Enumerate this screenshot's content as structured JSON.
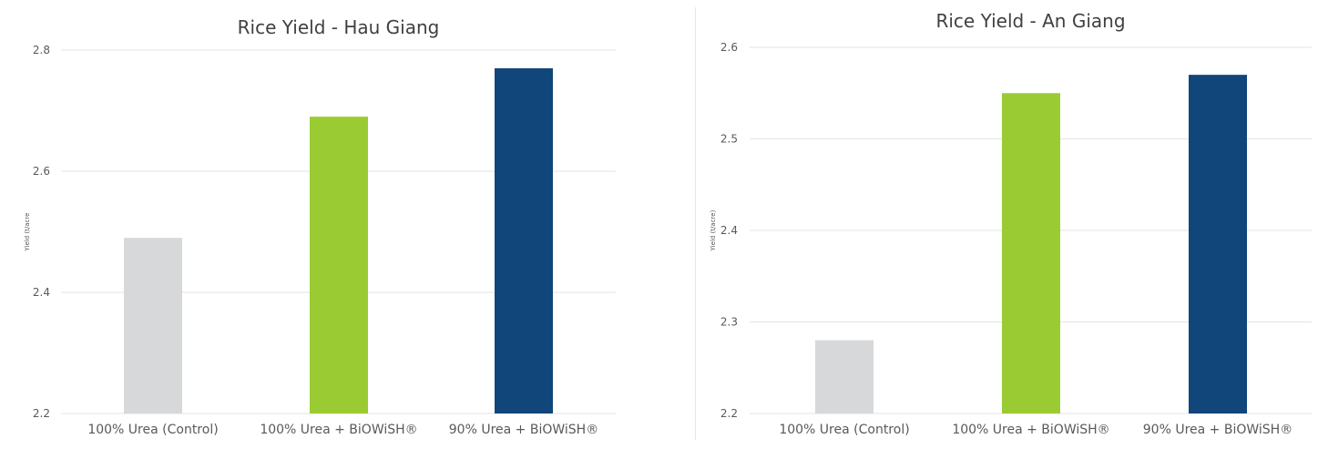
{
  "colors": {
    "control": "#d7d8da",
    "urea_100_biowish": "#9bcb33",
    "urea_90_biowish": "#10467a",
    "gridline": "#e3e3e3",
    "text": "#595959",
    "title": "#404040"
  },
  "chart_data": [
    {
      "type": "bar",
      "title": "Rice Yield - Hau Giang",
      "xlabel": "",
      "ylabel": "Yield (t/acre",
      "categories": [
        "100% Urea (Control)",
        "100% Urea + BiOWiSH®",
        "90% Urea + BiOWiSH®"
      ],
      "values": [
        2.49,
        2.69,
        2.77
      ],
      "bar_colors": [
        "#d7d8da",
        "#9bcb33",
        "#10467a"
      ],
      "ylim": [
        2.2,
        2.8
      ],
      "yticks": [
        2.2,
        2.4,
        2.6,
        2.8
      ],
      "ytick_labels": [
        "2.2",
        "2.4",
        "2.6",
        "2.8"
      ],
      "grid": true,
      "legend": false
    },
    {
      "type": "bar",
      "title": "Rice Yield - An Giang",
      "xlabel": "",
      "ylabel": "Yield (t/acre)",
      "categories": [
        "100% Urea (Control)",
        "100% Urea + BiOWiSH®",
        "90% Urea + BiOWiSH®"
      ],
      "values": [
        2.28,
        2.55,
        2.57
      ],
      "bar_colors": [
        "#d7d8da",
        "#9bcb33",
        "#10467a"
      ],
      "ylim": [
        2.2,
        2.6
      ],
      "yticks": [
        2.2,
        2.3,
        2.4,
        2.5,
        2.6
      ],
      "ytick_labels": [
        "2.2",
        "2.3",
        "2.4",
        "2.5",
        "2.6"
      ],
      "grid": true,
      "legend": false
    }
  ]
}
